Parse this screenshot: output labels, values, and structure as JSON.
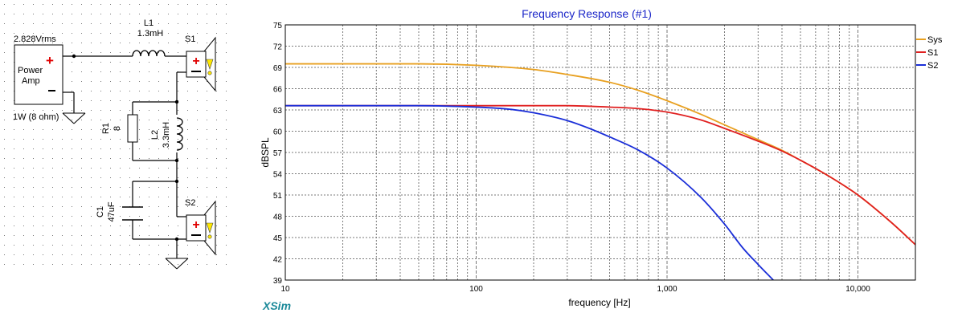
{
  "app": {
    "brand": "XSim"
  },
  "schematic": {
    "source_voltage": "2.828Vrms",
    "amp_label_line1": "Power",
    "amp_label_line2": "Amp",
    "amp_rating": "1W (8 ohm)",
    "components": {
      "L1": {
        "name": "L1",
        "value": "1.3mH"
      },
      "S1": {
        "name": "S1"
      },
      "R1": {
        "name": "R1",
        "value": "8"
      },
      "L2": {
        "name": "L2",
        "value": "3.3mH"
      },
      "C1": {
        "name": "C1",
        "value": "47uF"
      },
      "S2": {
        "name": "S2"
      }
    }
  },
  "chart_data": {
    "type": "line",
    "title": "Frequency Response (#1)",
    "xlabel": "frequency [Hz]",
    "ylabel": "dBSPL",
    "xscale": "log",
    "xlim": [
      10,
      20000
    ],
    "ylim": [
      39,
      75
    ],
    "xticks": [
      10,
      100,
      1000,
      10000
    ],
    "xtick_labels": [
      "10",
      "100",
      "1,000",
      "10,000"
    ],
    "yticks": [
      39,
      42,
      45,
      48,
      51,
      54,
      57,
      60,
      63,
      66,
      69,
      72,
      75
    ],
    "grid": true,
    "legend_position": "top-right",
    "series": [
      {
        "name": "Sys",
        "color": "#E8A020",
        "x": [
          10,
          50,
          100,
          200,
          300,
          500,
          700,
          1000,
          1500,
          2000,
          3000,
          4000,
          5000,
          7000,
          10000,
          15000,
          20000
        ],
        "y": [
          69.5,
          69.5,
          69.3,
          68.7,
          68.0,
          66.9,
          65.8,
          64.3,
          62.4,
          60.9,
          58.8,
          57.3,
          55.9,
          53.7,
          51.0,
          47.1,
          44.0
        ]
      },
      {
        "name": "S1",
        "color": "#E02020",
        "x": [
          10,
          50,
          100,
          200,
          300,
          500,
          700,
          1000,
          1500,
          2000,
          3000,
          4000,
          5000,
          7000,
          10000,
          15000,
          20000
        ],
        "y": [
          63.6,
          63.6,
          63.6,
          63.6,
          63.6,
          63.4,
          63.2,
          62.7,
          61.6,
          60.4,
          58.6,
          57.2,
          55.9,
          53.7,
          51.0,
          47.1,
          44.0
        ]
      },
      {
        "name": "S2",
        "color": "#1A2ED8",
        "x": [
          10,
          50,
          100,
          150,
          200,
          300,
          400,
          500,
          700,
          1000,
          1500,
          2000,
          2500,
          3000,
          3600
        ],
        "y": [
          63.6,
          63.6,
          63.4,
          63.1,
          62.6,
          61.5,
          60.3,
          59.2,
          57.4,
          54.8,
          50.7,
          46.9,
          43.5,
          41.2,
          39.0
        ]
      }
    ]
  }
}
